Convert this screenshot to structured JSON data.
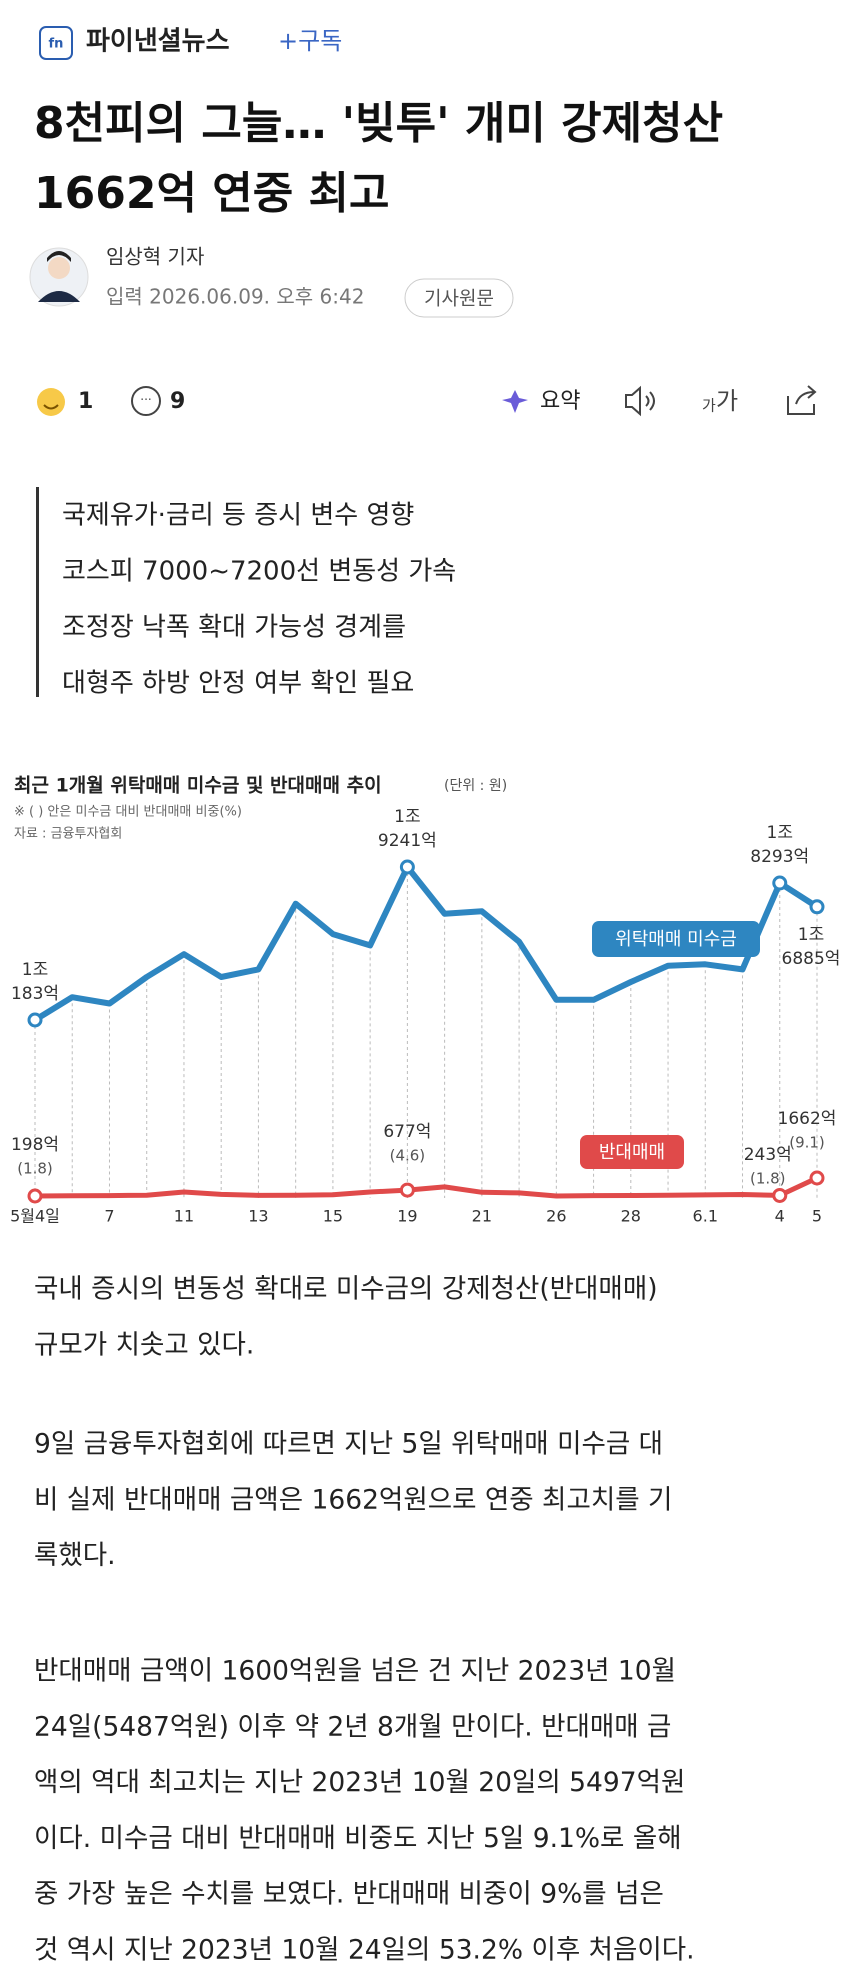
{
  "header": {
    "brand": "파이낸셜뉴스",
    "subscribe": "+구독"
  },
  "article": {
    "title_lines": [
      "8천피의 그늘… '빚투' 개미 강제청산",
      "1662억 연중 최고"
    ],
    "reporter": "임상혁 기자",
    "date": "입력 2026.06.09. 오후 6:42",
    "original_button": "기사원문"
  },
  "reactions": {
    "like_count": 1,
    "comment_count": 9,
    "summary": "요약",
    "font_small": "가",
    "font_large": "가"
  },
  "summary_lines": [
    "국제유가·금리 등 증시 변수 영향",
    "코스피 7000~7200선 변동성 가속",
    "조정장 낙폭 확대 가능성 경계를",
    "대형주 하방 안정 여부 확인 필요"
  ],
  "chart_data": {
    "type": "line",
    "title": "최근 1개월 위탁매매 미수금 및 반대매매 추이",
    "unit": "(단위 : 원)",
    "notes": [
      "※ ( ) 안은 미수금 대비 반대매매 비중(%)",
      "자료 : 금융투자협회"
    ],
    "categories": [
      "5월4일",
      null,
      "7",
      null,
      "11",
      null,
      "13",
      null,
      "15",
      null,
      "19",
      null,
      "21",
      null,
      "26",
      null,
      "28",
      null,
      "6.1",
      null,
      "4",
      "5"
    ],
    "series": [
      {
        "name": "위탁매매 미수금",
        "color": "#2e86c1",
        "values": [
          10183,
          11530,
          11160,
          12730,
          14080,
          12730,
          13180,
          17070,
          15270,
          14600,
          19241,
          16470,
          16620,
          14820,
          11380,
          11380,
          12430,
          13400,
          13480,
          13180,
          18293,
          16885
        ],
        "value_labels": [
          [
            "1조",
            "183억"
          ],
          null,
          null,
          null,
          null,
          null,
          null,
          null,
          null,
          null,
          [
            "1조",
            "9241억"
          ],
          null,
          null,
          null,
          null,
          null,
          null,
          null,
          null,
          null,
          [
            "1조",
            "8293억"
          ],
          [
            "1조",
            "6885억"
          ]
        ]
      },
      {
        "name": "반대매매",
        "color": "#e04a4a",
        "values": [
          198,
          220,
          230,
          260,
          520,
          330,
          250,
          260,
          300,
          520,
          677,
          940,
          500,
          450,
          200,
          230,
          240,
          260,
          290,
          320,
          243,
          1662
        ],
        "value_labels": [
          "198억",
          null,
          null,
          null,
          null,
          null,
          null,
          null,
          null,
          null,
          "677억",
          null,
          null,
          null,
          null,
          null,
          null,
          null,
          null,
          null,
          "243억",
          "1662억"
        ],
        "ratio_labels": [
          "(1.8)",
          null,
          null,
          null,
          null,
          null,
          null,
          null,
          null,
          null,
          "(4.6)",
          null,
          null,
          null,
          null,
          null,
          null,
          null,
          null,
          null,
          "(1.8)",
          "(9.1)"
        ]
      }
    ]
  },
  "body": {
    "paragraphs": [
      [
        "국내 증시의 변동성 확대로 미수금의 강제청산(반대매매)",
        "규모가 치솟고 있다."
      ],
      [
        "9일 금융투자협회에 따르면 지난 5일 위탁매매 미수금 대",
        "비 실제 반대매매 금액은 1662억원으로 연중 최고치를 기",
        "록했다."
      ],
      [
        "반대매매 금액이 1600억원을 넘은 건 지난 2023년 10월",
        "24일(5487억원) 이후 약 2년 8개월 만이다. 반대매매 금",
        "액의 역대 최고치는 지난 2023년 10월 20일의 5497억원",
        "이다. 미수금 대비 반대매매 비중도 지난 5일 9.1%로 올해",
        "중 가장 높은 수치를 보였다. 반대매매 비중이 9%를 넘은",
        "것 역시 지난 2023년 10월 24일의 53.2% 이후 처음이다."
      ]
    ]
  }
}
